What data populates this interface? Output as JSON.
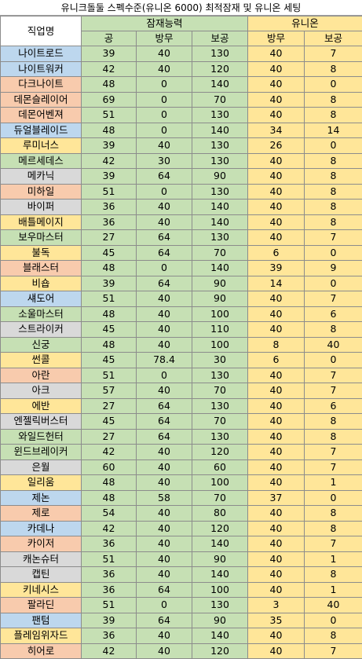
{
  "title": "유니크돌둘 스펙수준(유니온 6000) 최적잠재 및 유니온 세팅",
  "headers": {
    "job": "직업명",
    "potential_group": "잠재능력",
    "union_group": "유니온",
    "potential_cols": [
      "공",
      "방무",
      "보공"
    ],
    "union_cols": [
      "방무",
      "보공"
    ]
  },
  "colors": {
    "potential": "#c6e0b4",
    "union": "#ffe699",
    "blue": "#bdd7ee",
    "orange": "#f8cbad",
    "yellow": "#ffe699",
    "green": "#c6e0b4",
    "gray": "#d9d9d9"
  },
  "rows": [
    {
      "job": "나이트로드",
      "color": "blue",
      "atk": "39",
      "ied": "40",
      "boss": "130",
      "u_ied": "40",
      "u_boss": "7"
    },
    {
      "job": "나이트워커",
      "color": "blue",
      "atk": "42",
      "ied": "40",
      "boss": "120",
      "u_ied": "40",
      "u_boss": "8"
    },
    {
      "job": "다크나이트",
      "color": "orange",
      "atk": "48",
      "ied": "0",
      "boss": "140",
      "u_ied": "40",
      "u_boss": "0"
    },
    {
      "job": "데몬슬레이어",
      "color": "orange",
      "atk": "69",
      "ied": "0",
      "boss": "70",
      "u_ied": "40",
      "u_boss": "8"
    },
    {
      "job": "데몬어벤져",
      "color": "orange",
      "atk": "51",
      "ied": "0",
      "boss": "130",
      "u_ied": "40",
      "u_boss": "8"
    },
    {
      "job": "듀얼블레이드",
      "color": "blue",
      "atk": "48",
      "ied": "0",
      "boss": "140",
      "u_ied": "34",
      "u_boss": "14"
    },
    {
      "job": "루미너스",
      "color": "yellow",
      "atk": "39",
      "ied": "40",
      "boss": "130",
      "u_ied": "26",
      "u_boss": "0"
    },
    {
      "job": "메르세데스",
      "color": "green",
      "atk": "42",
      "ied": "30",
      "boss": "130",
      "u_ied": "40",
      "u_boss": "8"
    },
    {
      "job": "메카닉",
      "color": "gray",
      "atk": "39",
      "ied": "64",
      "boss": "90",
      "u_ied": "40",
      "u_boss": "8"
    },
    {
      "job": "미하일",
      "color": "orange",
      "atk": "51",
      "ied": "0",
      "boss": "130",
      "u_ied": "40",
      "u_boss": "8"
    },
    {
      "job": "바이퍼",
      "color": "gray",
      "atk": "36",
      "ied": "40",
      "boss": "140",
      "u_ied": "40",
      "u_boss": "8"
    },
    {
      "job": "배틀메이지",
      "color": "yellow",
      "atk": "36",
      "ied": "40",
      "boss": "140",
      "u_ied": "40",
      "u_boss": "8"
    },
    {
      "job": "보우마스터",
      "color": "green",
      "atk": "27",
      "ied": "64",
      "boss": "130",
      "u_ied": "40",
      "u_boss": "7"
    },
    {
      "job": "불독",
      "color": "yellow",
      "atk": "45",
      "ied": "64",
      "boss": "70",
      "u_ied": "6",
      "u_boss": "0"
    },
    {
      "job": "블래스터",
      "color": "orange",
      "atk": "48",
      "ied": "0",
      "boss": "140",
      "u_ied": "39",
      "u_boss": "9"
    },
    {
      "job": "비숍",
      "color": "yellow",
      "atk": "39",
      "ied": "64",
      "boss": "90",
      "u_ied": "14",
      "u_boss": "0"
    },
    {
      "job": "섀도어",
      "color": "blue",
      "atk": "51",
      "ied": "40",
      "boss": "90",
      "u_ied": "40",
      "u_boss": "7"
    },
    {
      "job": "소울마스터",
      "color": "green",
      "atk": "48",
      "ied": "40",
      "boss": "100",
      "u_ied": "40",
      "u_boss": "6"
    },
    {
      "job": "스트라이커",
      "color": "gray",
      "atk": "45",
      "ied": "40",
      "boss": "110",
      "u_ied": "40",
      "u_boss": "8"
    },
    {
      "job": "신궁",
      "color": "green",
      "atk": "48",
      "ied": "40",
      "boss": "100",
      "u_ied": "8",
      "u_boss": "40"
    },
    {
      "job": "썬콜",
      "color": "yellow",
      "atk": "45",
      "ied": "78.4",
      "boss": "30",
      "u_ied": "6",
      "u_boss": "0"
    },
    {
      "job": "아란",
      "color": "orange",
      "atk": "51",
      "ied": "0",
      "boss": "130",
      "u_ied": "40",
      "u_boss": "7"
    },
    {
      "job": "아크",
      "color": "gray",
      "atk": "57",
      "ied": "40",
      "boss": "70",
      "u_ied": "40",
      "u_boss": "7"
    },
    {
      "job": "에반",
      "color": "yellow",
      "atk": "27",
      "ied": "64",
      "boss": "130",
      "u_ied": "40",
      "u_boss": "6"
    },
    {
      "job": "엔젤릭버스터",
      "color": "gray",
      "atk": "45",
      "ied": "64",
      "boss": "70",
      "u_ied": "40",
      "u_boss": "8"
    },
    {
      "job": "와일드헌터",
      "color": "green",
      "atk": "27",
      "ied": "64",
      "boss": "130",
      "u_ied": "40",
      "u_boss": "8"
    },
    {
      "job": "윈드브레이커",
      "color": "green",
      "atk": "42",
      "ied": "40",
      "boss": "120",
      "u_ied": "40",
      "u_boss": "7"
    },
    {
      "job": "은월",
      "color": "gray",
      "atk": "60",
      "ied": "40",
      "boss": "60",
      "u_ied": "40",
      "u_boss": "7"
    },
    {
      "job": "일리움",
      "color": "yellow",
      "atk": "48",
      "ied": "40",
      "boss": "100",
      "u_ied": "40",
      "u_boss": "1"
    },
    {
      "job": "제논",
      "color": "blue",
      "atk": "48",
      "ied": "58",
      "boss": "70",
      "u_ied": "37",
      "u_boss": "0"
    },
    {
      "job": "제로",
      "color": "orange",
      "atk": "54",
      "ied": "40",
      "boss": "80",
      "u_ied": "40",
      "u_boss": "8"
    },
    {
      "job": "카데나",
      "color": "blue",
      "atk": "42",
      "ied": "40",
      "boss": "120",
      "u_ied": "40",
      "u_boss": "8"
    },
    {
      "job": "카이저",
      "color": "orange",
      "atk": "36",
      "ied": "40",
      "boss": "140",
      "u_ied": "40",
      "u_boss": "7"
    },
    {
      "job": "캐논슈터",
      "color": "gray",
      "atk": "51",
      "ied": "40",
      "boss": "90",
      "u_ied": "40",
      "u_boss": "1"
    },
    {
      "job": "캡틴",
      "color": "gray",
      "atk": "36",
      "ied": "40",
      "boss": "140",
      "u_ied": "40",
      "u_boss": "8"
    },
    {
      "job": "키네시스",
      "color": "yellow",
      "atk": "36",
      "ied": "64",
      "boss": "100",
      "u_ied": "40",
      "u_boss": "1"
    },
    {
      "job": "팔라딘",
      "color": "orange",
      "atk": "51",
      "ied": "0",
      "boss": "130",
      "u_ied": "3",
      "u_boss": "40"
    },
    {
      "job": "팬텀",
      "color": "blue",
      "atk": "39",
      "ied": "64",
      "boss": "90",
      "u_ied": "35",
      "u_boss": "0"
    },
    {
      "job": "플레임위자드",
      "color": "yellow",
      "atk": "36",
      "ied": "40",
      "boss": "140",
      "u_ied": "40",
      "u_boss": "8"
    },
    {
      "job": "히어로",
      "color": "orange",
      "atk": "42",
      "ied": "40",
      "boss": "120",
      "u_ied": "40",
      "u_boss": "7"
    }
  ]
}
